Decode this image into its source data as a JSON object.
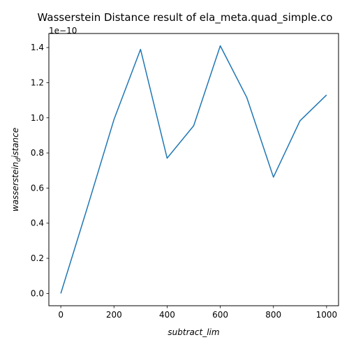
{
  "chart_data": {
    "type": "line",
    "title": "Wasserstein Distance result of ela_meta.quad_simple.co",
    "xlabel": "subtract_lim",
    "ylabel_main": "wasserstein",
    "ylabel_sub": "d",
    "ylabel_tail": "istance",
    "offset_text": "1e−10",
    "x": [
      0,
      100,
      200,
      300,
      400,
      500,
      600,
      700,
      800,
      900,
      1000
    ],
    "y": [
      0.0,
      0.49,
      0.99,
      1.39,
      0.77,
      0.955,
      1.41,
      1.115,
      0.662,
      0.983,
      1.13
    ],
    "y_scale": 1e-10,
    "xlim": [
      -45,
      1045
    ],
    "ylim": [
      -0.07,
      1.48
    ],
    "x_ticks": [
      0,
      200,
      400,
      600,
      800,
      1000
    ],
    "y_ticks": [
      0.0,
      0.2,
      0.4,
      0.6,
      0.8,
      1.0,
      1.2,
      1.4
    ],
    "x_tick_labels": [
      "0",
      "200",
      "400",
      "600",
      "800",
      "1000"
    ],
    "y_tick_labels": [
      "0.0",
      "0.2",
      "0.4",
      "0.6",
      "0.8",
      "1.0",
      "1.2",
      "1.4"
    ],
    "grid": false,
    "line_color": "#1f77b4"
  }
}
